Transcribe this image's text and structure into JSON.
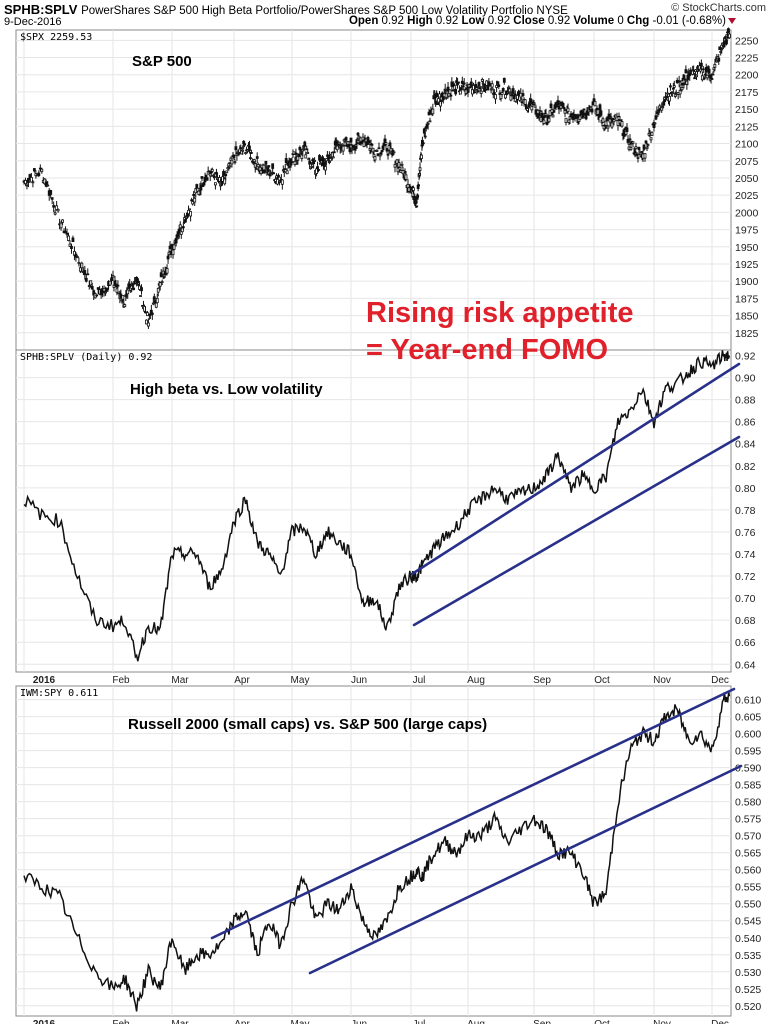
{
  "header": {
    "symbol": "SPHB:SPLV",
    "description": "PowerShares S&P 500 High Beta Portfolio/PowerShares S&P 500 Low Volatility Portfolio NYSE",
    "date": "9-Dec-2016",
    "open_label": "Open",
    "open": "0.92",
    "high_label": "High",
    "high": "0.92",
    "low_label": "Low",
    "low": "0.92",
    "close_label": "Close",
    "close": "0.92",
    "volume_label": "Volume",
    "volume": "0",
    "chg_label": "Chg",
    "chg": "-0.01 (-0.68%)",
    "brand": "© StockCharts.com"
  },
  "headline": [
    "Rising risk appetite",
    "= Year-end FOMO"
  ],
  "colors": {
    "headline": "#e0202a",
    "channel": "#28308a",
    "series": "#111111"
  },
  "x_months": [
    "2016",
    "Feb",
    "Mar",
    "Apr",
    "May",
    "Jun",
    "Jul",
    "Aug",
    "Sep",
    "Oct",
    "Nov",
    "Dec"
  ],
  "chart_data": [
    {
      "type": "line",
      "style": "candlestick",
      "legend": "$SPX 2259.53",
      "annotation": "S&P 500",
      "ylim": [
        1800,
        2265
      ],
      "yticks": [
        1825,
        1850,
        1875,
        1900,
        1925,
        1950,
        1975,
        2000,
        2025,
        2050,
        2075,
        2100,
        2125,
        2150,
        2175,
        2200,
        2225,
        2250
      ],
      "x": [
        0,
        0.2,
        0.4,
        0.6,
        0.8,
        1.0,
        1.2,
        1.4,
        1.6,
        1.8,
        2.0,
        2.2,
        2.4,
        2.6,
        2.8,
        3.0,
        3.2,
        3.4,
        3.6,
        3.8,
        4.0,
        4.2,
        4.4,
        4.6,
        4.8,
        5.0,
        5.2,
        5.4,
        5.6,
        5.8,
        6.0,
        6.1,
        6.2,
        6.4,
        6.6,
        6.8,
        7.0,
        7.2,
        7.4,
        7.6,
        7.8,
        8.0,
        8.2,
        8.4,
        8.6,
        8.8,
        9.0,
        9.2,
        9.4,
        9.6,
        9.8,
        10.0,
        10.2,
        10.4,
        10.6,
        10.8,
        11.0,
        11.2,
        11.3
      ],
      "values": [
        2044,
        2060,
        1990,
        1935,
        1880,
        1900,
        1870,
        1905,
        1840,
        1895,
        1950,
        1990,
        2030,
        2060,
        2040,
        2080,
        2095,
        2070,
        2060,
        2050,
        2080,
        2090,
        2065,
        2075,
        2100,
        2095,
        2110,
        2090,
        2095,
        2070,
        2037,
        2015,
        2100,
        2160,
        2175,
        2180,
        2180,
        2185,
        2180,
        2180,
        2165,
        2150,
        2135,
        2155,
        2140,
        2145,
        2155,
        2130,
        2135,
        2100,
        2080,
        2130,
        2170,
        2180,
        2200,
        2205,
        2200,
        2245,
        2259
      ]
    },
    {
      "type": "line",
      "legend": "SPHB:SPLV (Daily) 0.92",
      "annotation": "High beta vs. Low volatility",
      "ylim": [
        0.633,
        0.925
      ],
      "yticks": [
        0.64,
        0.66,
        0.68,
        0.7,
        0.72,
        0.74,
        0.76,
        0.78,
        0.8,
        0.82,
        0.84,
        0.86,
        0.88,
        0.9,
        0.92
      ],
      "x": [
        0,
        0.2,
        0.4,
        0.6,
        0.8,
        1.0,
        1.2,
        1.4,
        1.6,
        1.8,
        2.0,
        2.2,
        2.4,
        2.6,
        2.8,
        3.0,
        3.2,
        3.4,
        3.6,
        3.8,
        4.0,
        4.2,
        4.4,
        4.6,
        4.8,
        5.0,
        5.2,
        5.4,
        5.6,
        5.8,
        6.0,
        6.1,
        6.2,
        6.4,
        6.6,
        6.8,
        7.0,
        7.2,
        7.4,
        7.6,
        7.8,
        8.0,
        8.2,
        8.4,
        8.6,
        8.8,
        9.0,
        9.2,
        9.4,
        9.6,
        9.8,
        10.0,
        10.2,
        10.4,
        10.6,
        10.8,
        11.0,
        11.2,
        11.3
      ],
      "values": [
        0.79,
        0.775,
        0.77,
        0.72,
        0.68,
        0.675,
        0.68,
        0.645,
        0.675,
        0.67,
        0.74,
        0.74,
        0.74,
        0.71,
        0.725,
        0.77,
        0.79,
        0.75,
        0.74,
        0.72,
        0.76,
        0.765,
        0.74,
        0.76,
        0.75,
        0.74,
        0.695,
        0.7,
        0.672,
        0.71,
        0.72,
        0.72,
        0.73,
        0.745,
        0.755,
        0.765,
        0.78,
        0.79,
        0.8,
        0.79,
        0.795,
        0.8,
        0.81,
        0.83,
        0.8,
        0.81,
        0.8,
        0.81,
        0.86,
        0.87,
        0.89,
        0.86,
        0.89,
        0.895,
        0.905,
        0.915,
        0.91,
        0.92,
        0.92
      ]
    },
    {
      "type": "line",
      "legend": "IWM:SPY 0.611",
      "annotation": "Russell 2000 (small caps) vs. S&P 500 (large caps)",
      "ylim": [
        0.517,
        0.614
      ],
      "yticks": [
        0.52,
        0.525,
        0.53,
        0.535,
        0.54,
        0.545,
        0.55,
        0.555,
        0.56,
        0.565,
        0.57,
        0.575,
        0.58,
        0.585,
        0.59,
        0.595,
        0.6,
        0.605,
        0.61
      ],
      "x": [
        0,
        0.2,
        0.4,
        0.6,
        0.8,
        1.0,
        1.2,
        1.4,
        1.6,
        1.8,
        2.0,
        2.2,
        2.4,
        2.6,
        2.8,
        3.0,
        3.2,
        3.4,
        3.6,
        3.8,
        4.0,
        4.2,
        4.4,
        4.6,
        4.8,
        5.0,
        5.2,
        5.4,
        5.6,
        5.8,
        6.0,
        6.1,
        6.2,
        6.4,
        6.6,
        6.8,
        7.0,
        7.2,
        7.4,
        7.6,
        7.8,
        8.0,
        8.2,
        8.4,
        8.6,
        8.8,
        9.0,
        9.2,
        9.4,
        9.6,
        9.8,
        10.0,
        10.2,
        10.4,
        10.6,
        10.8,
        11.0,
        11.2,
        11.3
      ],
      "values": [
        0.558,
        0.555,
        0.552,
        0.54,
        0.53,
        0.525,
        0.528,
        0.52,
        0.53,
        0.525,
        0.54,
        0.53,
        0.535,
        0.535,
        0.538,
        0.545,
        0.548,
        0.535,
        0.545,
        0.538,
        0.55,
        0.558,
        0.545,
        0.55,
        0.548,
        0.555,
        0.545,
        0.54,
        0.545,
        0.555,
        0.558,
        0.56,
        0.558,
        0.565,
        0.568,
        0.565,
        0.57,
        0.57,
        0.575,
        0.568,
        0.572,
        0.575,
        0.572,
        0.565,
        0.565,
        0.56,
        0.55,
        0.553,
        0.58,
        0.595,
        0.6,
        0.598,
        0.605,
        0.607,
        0.598,
        0.6,
        0.595,
        0.61,
        0.611
      ]
    }
  ]
}
